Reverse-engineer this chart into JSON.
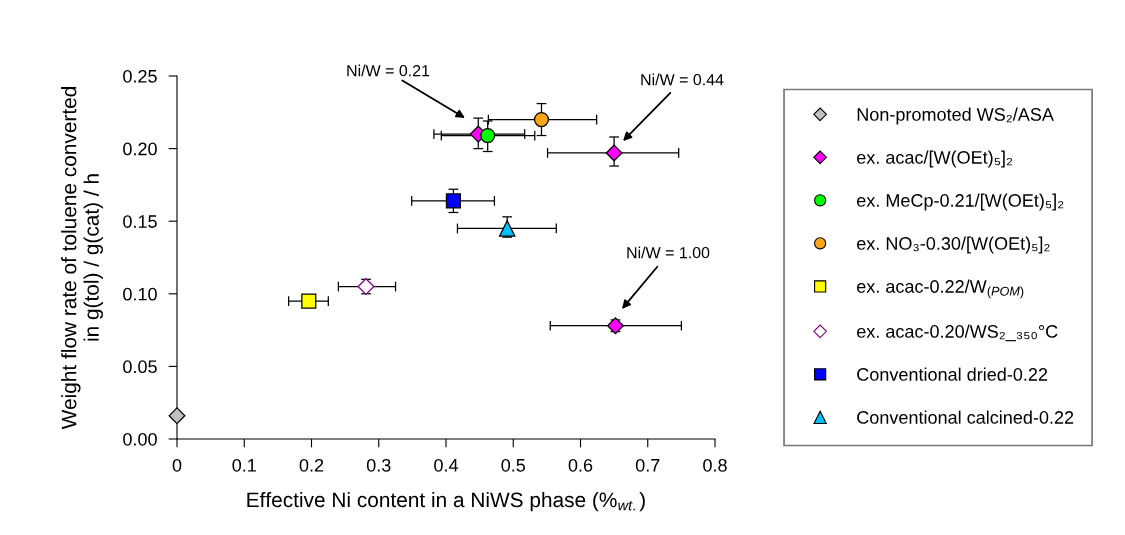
{
  "chart_data": {
    "type": "scatter",
    "xlabel": "Effective Ni content in a NiWS phase (%$_{wt.}$)",
    "ylabel": "Weight flow rate of toluene converted\nin g(tol) / g(cat) / h",
    "xlim": [
      0,
      0.8
    ],
    "xticks": [
      0,
      0.1,
      0.2,
      0.3,
      0.4,
      0.5,
      0.6,
      0.7,
      0.8
    ],
    "ylim": [
      0,
      0.25
    ],
    "yticks": [
      {
        "value": 0,
        "label": "0.00"
      },
      0.05,
      {
        "value": 0.1,
        "label": "0.10"
      },
      0.15,
      {
        "value": 0.2,
        "label": "0.20"
      },
      0.25
    ],
    "grid": false,
    "legend": "right",
    "series": [
      {
        "name": "Non-promoted WS₂/ASA",
        "color": "#c0c0c0",
        "marker": "diamond",
        "x": [
          0
        ],
        "values": [
          0.016
        ]
      },
      {
        "name": "ex. acac/[W(OEt)₅]₂",
        "color": "#ff00ff",
        "marker": "diamond",
        "x": [
          0.448,
          0.65,
          0.652
        ],
        "values": [
          0.21,
          0.197,
          0.078
        ],
        "errors": [
          [
            0.2,
            0.221
          ],
          [
            0.188,
            0.208
          ],
          [
            0.074,
            0.082
          ]
        ],
        "xerrors": [
          [
            0.382,
            0.517
          ],
          [
            0.551,
            0.746
          ],
          [
            0.555,
            0.75
          ]
        ]
      },
      {
        "name": "ex. MeCp-0.21/[W(OEt)₅]₂",
        "color": "#00ff00",
        "marker": "circle",
        "x": [
          0.462
        ],
        "values": [
          0.209
        ],
        "errors": [
          [
            0.198,
            0.219
          ]
        ],
        "xerrors": [
          [
            0.393,
            0.532
          ]
        ]
      },
      {
        "name": "ex. NO₃-0.30/[W(OEt)₅]₂",
        "color": "#f9a51a",
        "marker": "circle",
        "x": [
          0.542
        ],
        "values": [
          0.22
        ],
        "errors": [
          [
            0.209,
            0.231
          ]
        ],
        "xerrors": [
          [
            0.463,
            0.624
          ]
        ]
      },
      {
        "name": "ex. acac-0.22/W$_{(POM)}$",
        "color": "#ffff00",
        "marker": "square",
        "x": [
          0.196
        ],
        "values": [
          0.095
        ],
        "xerrors": [
          [
            0.166,
            0.225
          ]
        ]
      },
      {
        "name": "ex. acac-0.20/WS₂_₃₅₀°C",
        "color": "#ffffff",
        "marker": "diamond",
        "x": [
          0.281
        ],
        "values": [
          0.105
        ],
        "errors": [
          [
            0.1,
            0.11
          ]
        ],
        "xerrors": [
          [
            0.24,
            0.325
          ]
        ]
      },
      {
        "name": "Conventional dried-0.22",
        "color": "#0000ff",
        "marker": "square",
        "x": [
          0.411
        ],
        "values": [
          0.164
        ],
        "errors": [
          [
            0.156,
            0.172
          ]
        ],
        "xerrors": [
          [
            0.349,
            0.472
          ]
        ]
      },
      {
        "name": "Conventional calcined-0.22",
        "color": "#00bfff",
        "marker": "triangle",
        "x": [
          0.491
        ],
        "values": [
          0.145
        ],
        "errors": [
          [
            0.139,
            0.153
          ]
        ],
        "xerrors": [
          [
            0.417,
            0.564
          ]
        ]
      }
    ],
    "annotations": [
      "Ni/W = 0.21",
      "Ni/W = 0.44",
      "Ni/W = 1.00"
    ]
  }
}
